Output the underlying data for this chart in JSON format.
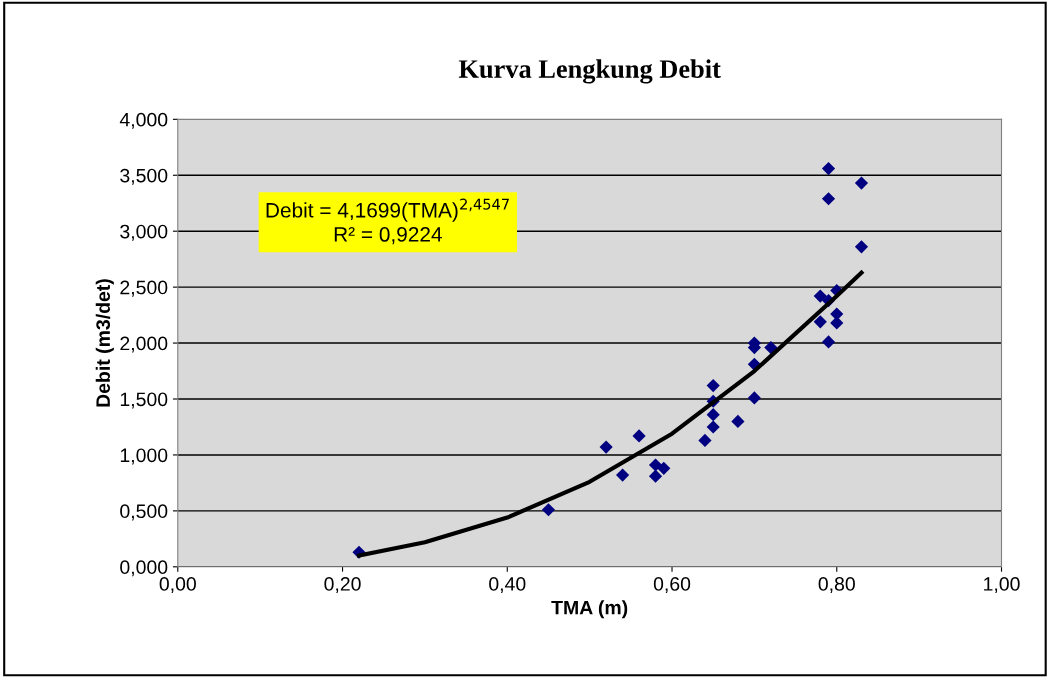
{
  "chart_data": {
    "type": "scatter",
    "title": "Kurva Lengkung Debit",
    "xlabel": "TMA (m)",
    "ylabel": "Debit (m3/det)",
    "annotations": [
      "Debit = 4,1699(TMA)$^{2,4547}$",
      "R² = 0,9224"
    ],
    "series": [
      {
        "color": "#000080",
        "marker": "diamond",
        "x": [
          0.22,
          0.45,
          0.52,
          0.54,
          0.56,
          0.58,
          0.58,
          0.59,
          0.64,
          0.65,
          0.65,
          0.65,
          0.65,
          0.68,
          0.7,
          0.7,
          0.7,
          0.7,
          0.72,
          0.78,
          0.78,
          0.79,
          0.79,
          0.79,
          0.79,
          0.8,
          0.8,
          0.8,
          0.83,
          0.83
        ],
        "values": [
          0.13,
          0.51,
          1.07,
          0.82,
          1.17,
          0.91,
          0.81,
          0.88,
          1.13,
          1.62,
          1.48,
          1.36,
          1.25,
          1.3,
          1.51,
          1.81,
          1.96,
          2.0,
          1.96,
          2.42,
          2.19,
          2.38,
          2.01,
          3.29,
          3.56,
          2.47,
          2.26,
          2.18,
          2.86,
          3.43
        ]
      },
      {
        "type": "line",
        "color": "#000000",
        "line_style": "solid",
        "x": [
          0.22,
          0.3,
          0.4,
          0.5,
          0.6,
          0.7,
          0.8,
          0.83
        ],
        "values": [
          0.1,
          0.22,
          0.44,
          0.76,
          1.19,
          1.75,
          2.42,
          2.63
        ]
      }
    ],
    "xlim": [
      0,
      1
    ],
    "xticks": [
      {
        "value": 0,
        "label": "0,00"
      },
      {
        "value": 0.2,
        "label": "0,20"
      },
      {
        "value": 0.4,
        "label": "0,40"
      },
      {
        "value": 0.6,
        "label": "0,60"
      },
      {
        "value": 0.8,
        "label": "0,80"
      },
      {
        "value": 1,
        "label": "1,00"
      }
    ],
    "ylim": [
      0,
      4
    ],
    "yticks": [
      {
        "value": 0,
        "label": "0,000"
      },
      {
        "value": 0.5,
        "label": "0,500"
      },
      {
        "value": 1,
        "label": "1,000"
      },
      {
        "value": 1.5,
        "label": "1,500"
      },
      {
        "value": 2,
        "label": "2,000"
      },
      {
        "value": 2.5,
        "label": "2,500"
      },
      {
        "value": 3,
        "label": "3,000"
      },
      {
        "value": 3.5,
        "label": "3,500"
      },
      {
        "value": 4,
        "label": "4,000"
      }
    ],
    "grid": "y",
    "legend": false
  }
}
